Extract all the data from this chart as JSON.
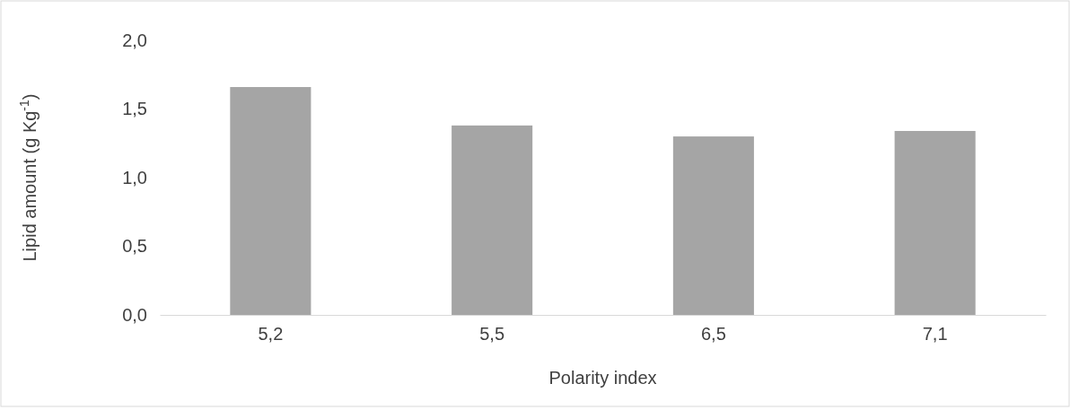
{
  "chart_data": {
    "type": "bar",
    "xlabel": "Polarity index",
    "ylabel": "Lipid amount (g Kg$^{-1}$)",
    "categories": [
      "5,2",
      "5,5",
      "6,5",
      "7,1"
    ],
    "values": [
      1.66,
      1.38,
      1.3,
      1.34
    ],
    "color": "#a5a5a5",
    "ylim": [
      0,
      2
    ],
    "yticks": [
      {
        "value": 0,
        "label": "0,0"
      },
      {
        "value": 0.5,
        "label": "0,5"
      },
      {
        "value": 1,
        "label": "1,0"
      },
      {
        "value": 1.5,
        "label": "1,5"
      },
      {
        "value": 2,
        "label": "2,0"
      }
    ],
    "grid": false
  }
}
